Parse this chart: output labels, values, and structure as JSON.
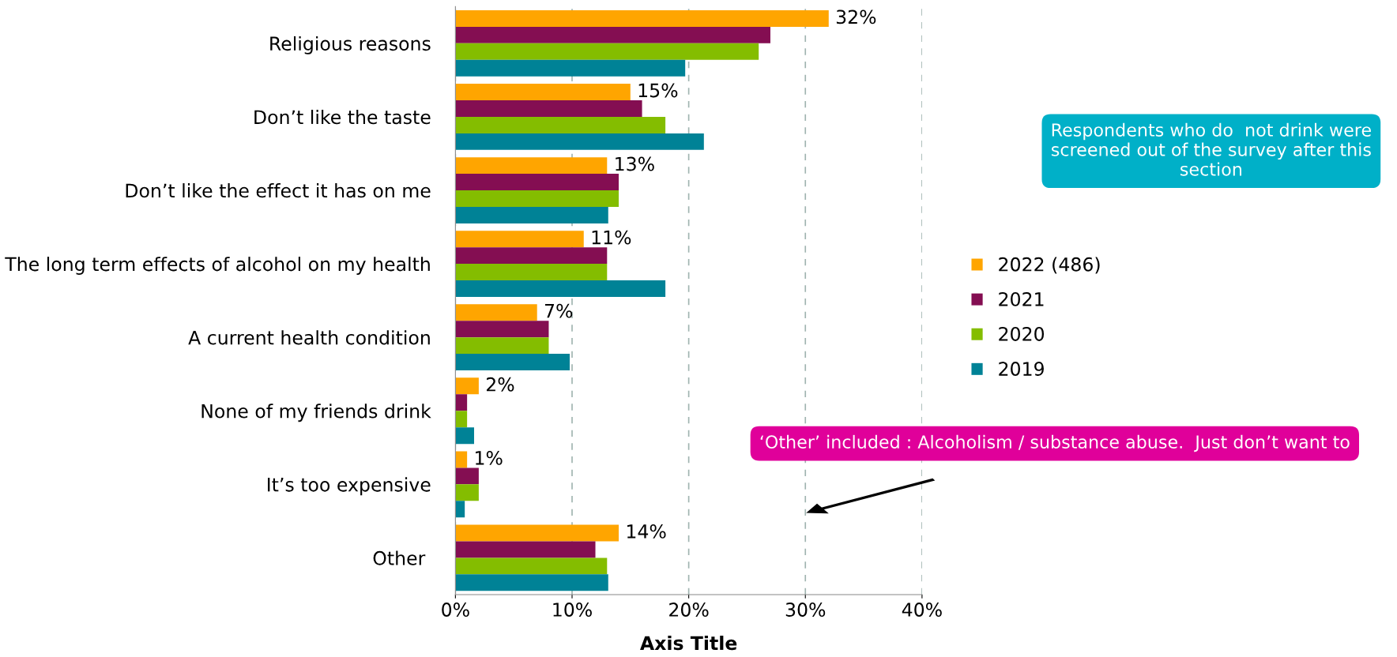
{
  "chart_data": {
    "type": "bar",
    "orientation": "horizontal",
    "xlabel": "Axis Title",
    "categories": [
      "Religious reasons",
      "Don’t like the taste",
      "Don’t like the effect it has on me",
      "The long term effects of alcohol on my health",
      "A current health condition",
      "None of my friends drink",
      "It’s too expensive",
      "Other "
    ],
    "series": [
      {
        "name": "2022 (486)",
        "color": "#ffa500",
        "values": [
          32,
          15,
          13,
          11,
          7,
          2,
          1,
          14
        ],
        "value_labels": [
          "32%",
          "15%",
          "13%",
          "11%",
          "7%",
          "2%",
          "1%",
          "14%"
        ]
      },
      {
        "name": "2021",
        "color": "#840e52",
        "values": [
          27,
          16,
          14,
          13,
          8,
          1,
          2,
          12
        ]
      },
      {
        "name": "2020",
        "color": "#84bd00",
        "values": [
          26,
          18,
          14,
          13,
          8,
          1,
          2,
          13
        ]
      },
      {
        "name": "2019",
        "color": "#008296",
        "values": [
          19.7,
          21.3,
          13.1,
          18,
          9.8,
          1.6,
          0.8,
          13.1
        ]
      }
    ],
    "xlim": [
      0,
      40
    ],
    "xticks": [
      {
        "value": 0,
        "label": "0%"
      },
      {
        "value": 10,
        "label": "10%"
      },
      {
        "value": 20,
        "label": "20%"
      },
      {
        "value": 30,
        "label": "30%"
      },
      {
        "value": 40,
        "label": "40%"
      }
    ],
    "grid": "x",
    "legend": "right",
    "annotations": [
      "Respondents who do  not drink were screened out of the survey after this section",
      "‘Other’ included : Alcoholism / substance abuse.  Just don’t want to"
    ]
  }
}
